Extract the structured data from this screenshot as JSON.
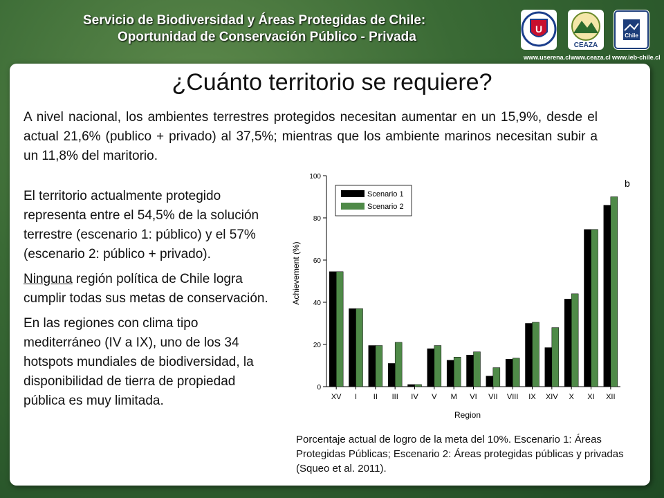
{
  "header": {
    "line1": "Servicio de Biodiversidad y Áreas Protegidas de Chile:",
    "line2": "Oportunidad de Conservación Público - Privada",
    "logos": [
      {
        "url": "www.userena.cl",
        "icon": "university-seal-icon"
      },
      {
        "url": "www.ceaza.cl",
        "icon": "ceaza-logo-icon",
        "text": "CEAZA"
      },
      {
        "url": "www.ieb-chile.cl",
        "icon": "ieb-logo-icon",
        "text": "Chile"
      }
    ]
  },
  "slide": {
    "title": "¿Cuánto territorio se requiere?",
    "intro": "A nivel nacional, los ambientes terrestres protegidos necesitan aumentar en un 15,9%, desde el actual 21,6% (publico + privado) al 37,5%; mientras que los ambiente marinos necesitan subir a un 11,8% del maritorio.",
    "para1": "El territorio actualmente protegido representa entre el 54,5% de la solución terrestre (escenario 1: público) y el 57% (escenario 2: público + privado).",
    "para2_underlined": "Ninguna",
    "para2_rest": " región política de Chile logra cumplir todas sus metas de conservación.",
    "para3": "En las regiones con clima tipo mediterráneo (IV a IX), uno de los 34 hotspots mundiales de biodiversidad, la disponibilidad de tierra de propiedad pública es muy limitada.",
    "caption": "Porcentaje actual de logro de la meta del 10%. Escenario 1: Áreas Protegidas Públicas; Escenario 2: Áreas protegidas públicas y privadas (Squeo et al. 2011)."
  },
  "colors": {
    "scenario1": "#000000",
    "scenario2": "#4f8a48"
  },
  "chart_data": {
    "type": "bar",
    "panel_label": "b",
    "xlabel": "Region",
    "ylabel": "Achievement (%)",
    "ylim": [
      0,
      100
    ],
    "yticks": [
      0,
      20,
      40,
      60,
      80,
      100
    ],
    "legend_position": "top-left",
    "categories": [
      "XV",
      "I",
      "II",
      "III",
      "IV",
      "V",
      "M",
      "VI",
      "VII",
      "VIII",
      "IX",
      "XIV",
      "X",
      "XI",
      "XII"
    ],
    "series": [
      {
        "name": "Scenario 1",
        "values": [
          54.5,
          37,
          19.5,
          11,
          1,
          18,
          12.5,
          15,
          5,
          13,
          30,
          18.5,
          41.5,
          74.5,
          86
        ]
      },
      {
        "name": "Scenario 2",
        "values": [
          54.5,
          37,
          19.5,
          21,
          1,
          19.5,
          14,
          16.5,
          9,
          13.5,
          30.5,
          28,
          44,
          74.5,
          90
        ]
      }
    ]
  }
}
